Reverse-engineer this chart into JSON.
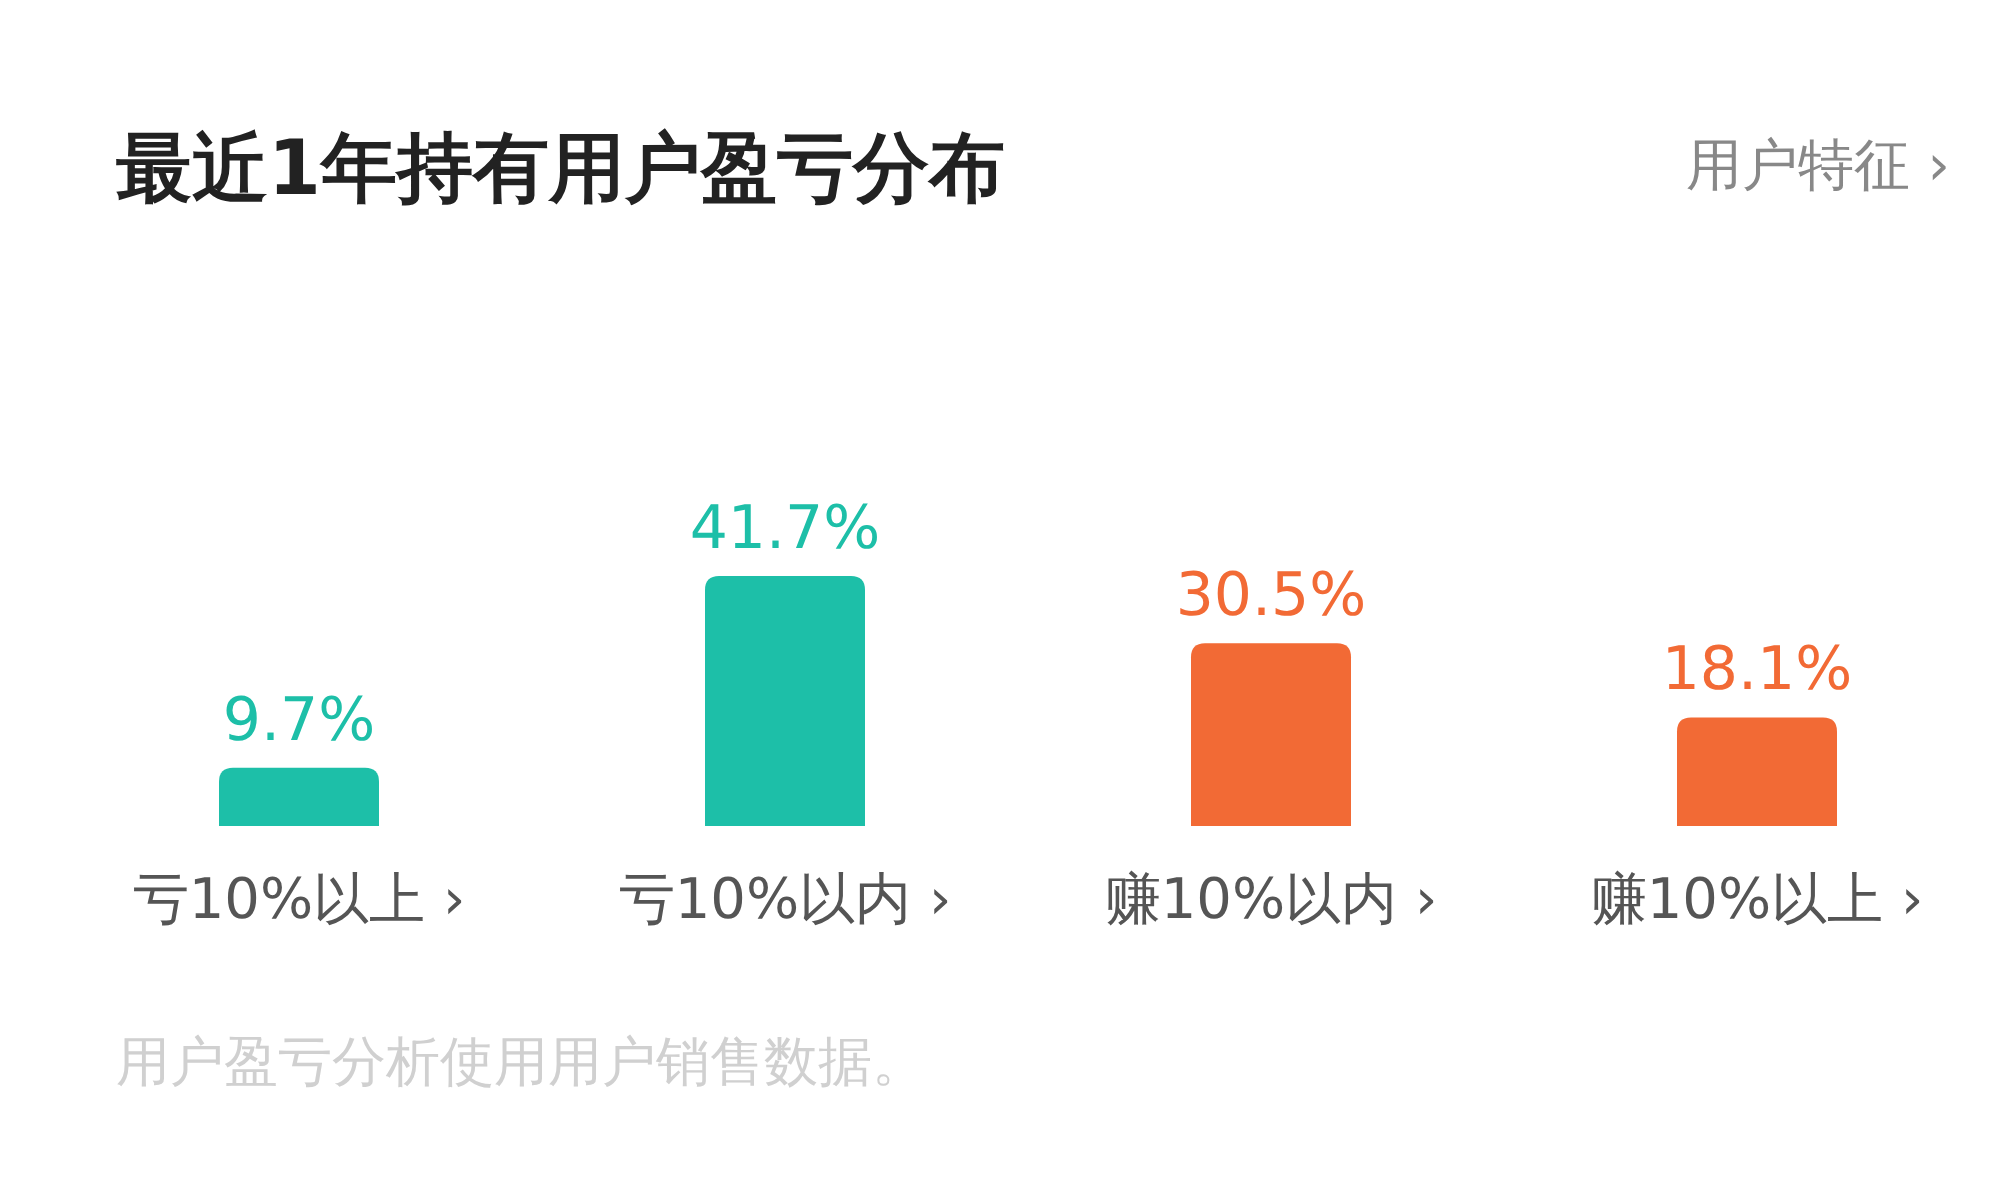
{
  "chart_data": {
    "type": "bar",
    "title": "最近1年持有用户盈亏分布",
    "categories": [
      "亏10%以上 ›",
      "亏10%以内 ›",
      "赚10%以内 ›",
      "赚10%以上 ›"
    ],
    "values": [
      9.7,
      41.7,
      30.5,
      18.1
    ],
    "colors": [
      "#1dbfa8",
      "#1dbfa8",
      "#f26a35",
      "#f26a35"
    ],
    "value_labels": [
      "9.7%",
      "41.7%",
      "30.5%",
      "18.1%"
    ],
    "annotations": [
      "用户特征 ›",
      "用户盈亏分析使用用户销售数据。"
    ]
  }
}
